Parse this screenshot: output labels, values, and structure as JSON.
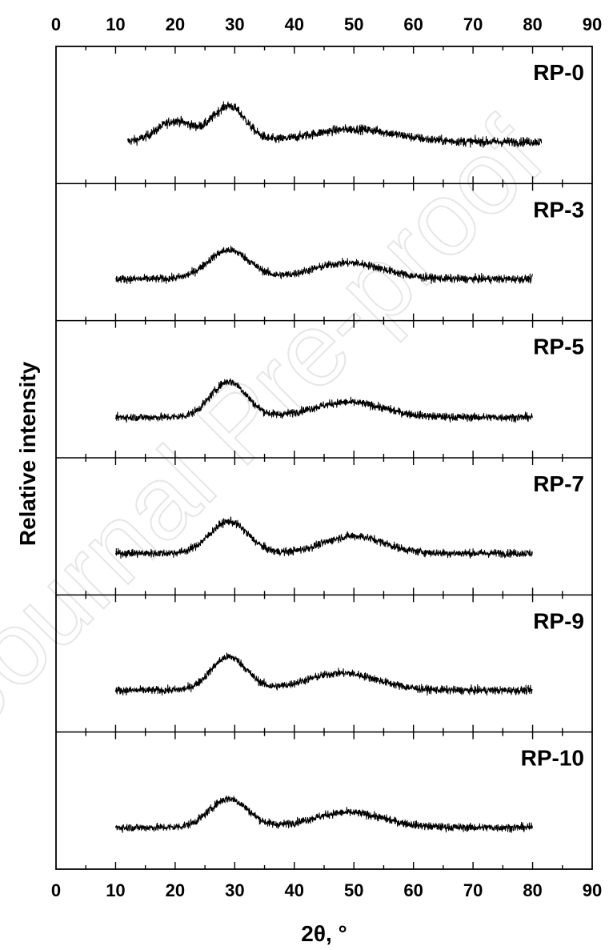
{
  "watermark": "Journal Pre-proof",
  "chart_data": {
    "type": "line",
    "xlabel": "2θ, °",
    "ylabel": "Relative intensity",
    "xlim": [
      0,
      90
    ],
    "xticks": [
      0,
      10,
      20,
      30,
      40,
      50,
      60,
      70,
      80,
      90
    ],
    "grid": false,
    "series": [
      {
        "name": "RP-0",
        "x_range": [
          12,
          81.5
        ],
        "peaks": [
          {
            "x": 20,
            "height": 0.36,
            "width": 3
          },
          {
            "x": 29,
            "height": 0.62,
            "width": 2.8
          },
          {
            "x": 50,
            "height": 0.22,
            "width": 7
          }
        ],
        "baseline": 0.2,
        "noise": 0.08
      },
      {
        "name": "RP-3",
        "x_range": [
          10,
          80
        ],
        "peaks": [
          {
            "x": 29,
            "height": 0.5,
            "width": 3.5
          },
          {
            "x": 49,
            "height": 0.28,
            "width": 6
          }
        ],
        "baseline": 0.2,
        "noise": 0.07
      },
      {
        "name": "RP-5",
        "x_range": [
          10,
          80
        ],
        "peaks": [
          {
            "x": 29,
            "height": 0.62,
            "width": 3
          },
          {
            "x": 49,
            "height": 0.26,
            "width": 6
          }
        ],
        "baseline": 0.18,
        "noise": 0.07
      },
      {
        "name": "RP-7",
        "x_range": [
          10,
          80
        ],
        "peaks": [
          {
            "x": 29,
            "height": 0.55,
            "width": 3.2
          },
          {
            "x": 50,
            "height": 0.3,
            "width": 5
          }
        ],
        "baseline": 0.2,
        "noise": 0.07
      },
      {
        "name": "RP-9",
        "x_range": [
          10,
          80
        ],
        "peaks": [
          {
            "x": 29,
            "height": 0.58,
            "width": 3
          },
          {
            "x": 48,
            "height": 0.3,
            "width": 6
          }
        ],
        "baseline": 0.2,
        "noise": 0.07
      },
      {
        "name": "RP-10",
        "x_range": [
          10,
          80
        ],
        "peaks": [
          {
            "x": 29,
            "height": 0.5,
            "width": 3.2
          },
          {
            "x": 49,
            "height": 0.26,
            "width": 6
          }
        ],
        "baseline": 0.2,
        "noise": 0.07
      }
    ]
  }
}
